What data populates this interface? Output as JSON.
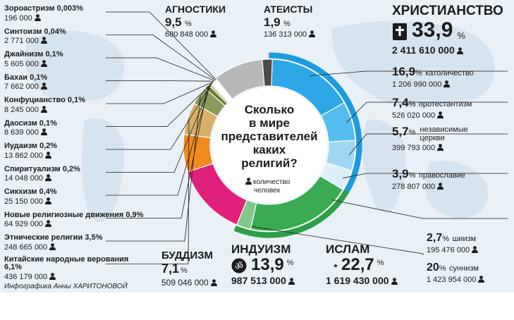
{
  "colors": {
    "christianity": "#1e9be0",
    "catholic": "#2da6e6",
    "protestant": "#55bdee",
    "independent": "#9fd7f3",
    "orthodox": "#dceef8",
    "islam": "#2e9e49",
    "sunni": "#3aab52",
    "shia": "#7fc88a",
    "hinduism": "#e0207a",
    "buddhism": "#f08a1e",
    "chinese": "#d9b06a",
    "ethnic": "#8a9a5b",
    "new_movements": "#6b7b2e",
    "sikh": "#b5a77a",
    "spiritism": "#e06a5a",
    "judaism": "#5a6fb3",
    "small": "#c97b9f",
    "agnostics": "#b7b7b7",
    "atheists": "#4a4a4a",
    "map": "#d6e4ef",
    "title_circle": "#ffffff"
  },
  "center": {
    "title_lines": [
      "Сколько",
      "в мире",
      "представителей",
      "каких",
      "религий?"
    ],
    "legend_text_1": "количество",
    "legend_text_2": "человек",
    "legend_icon": "person-icon"
  },
  "chart_data": {
    "type": "pie",
    "segments": [
      {
        "name": "Христианство",
        "percent": 33.9,
        "count": "2 411 610 000"
      },
      {
        "name": "Ислам",
        "percent": 22.7,
        "count": "1 619 430 000"
      },
      {
        "name": "Индуизм",
        "percent": 13.9,
        "count": "987 513 000"
      },
      {
        "name": "Буддизм",
        "percent": 7.1,
        "count": "509 046 000"
      },
      {
        "name": "Китайские народные верования",
        "percent": 6.1,
        "count": "436 179 000"
      },
      {
        "name": "Этнические религии",
        "percent": 3.5,
        "count": "248 665 000"
      },
      {
        "name": "Новые религиозные движения",
        "percent": 0.9,
        "count": "64 929 000"
      },
      {
        "name": "Сикхизм",
        "percent": 0.4,
        "count": "25 150 000"
      },
      {
        "name": "Спиритуализм",
        "percent": 0.2,
        "count": "14 048 000"
      },
      {
        "name": "Иудаизм",
        "percent": 0.2,
        "count": "13 862 000"
      },
      {
        "name": "Даосизм",
        "percent": 0.1,
        "count": "8 639 000"
      },
      {
        "name": "Конфуцианство",
        "percent": 0.1,
        "count": "8 245 000"
      },
      {
        "name": "Бахаи",
        "percent": 0.1,
        "count": "7 662 000"
      },
      {
        "name": "Джайнизм",
        "percent": 0.1,
        "count": "5 605 000"
      },
      {
        "name": "Синтоизм",
        "percent": 0.04,
        "count": "2 771 000"
      },
      {
        "name": "Зороастризм",
        "percent": 0.003,
        "count": "196 000"
      },
      {
        "name": "Агностики",
        "percent": 9.5,
        "count": "680 848 000"
      },
      {
        "name": "Атеисты",
        "percent": 1.9,
        "count": "136 313 000"
      }
    ],
    "christianity_breakdown": [
      {
        "name": "католичество",
        "percent": 16.9,
        "count": "1 206 990 000"
      },
      {
        "name": "протестантизм",
        "percent": 7.4,
        "count": "526 020 000"
      },
      {
        "name": "независимые церкви",
        "percent": 5.7,
        "count": "399 793 000"
      },
      {
        "name": "православие",
        "percent": 3.9,
        "count": "278 807 000"
      }
    ],
    "islam_breakdown": [
      {
        "name": "суннизм",
        "percent": 20,
        "count": "1 423 954 000"
      },
      {
        "name": "шиизм",
        "percent": 2.7,
        "count": "195 476 000"
      }
    ]
  },
  "labels": {
    "small": [
      {
        "name": "Зороастризм 0,003%",
        "count": "196 000"
      },
      {
        "name": "Синтоизм 0,04%",
        "count": "2 771 000"
      },
      {
        "name": "Джайнизм 0,1%",
        "count": "5 605 000"
      },
      {
        "name": "Бахаи 0,1%",
        "count": "7 662 000"
      },
      {
        "name": "Конфуцианство 0,1%",
        "count": "8 245 000"
      },
      {
        "name": "Даосизм 0,1%",
        "count": "8 639 000"
      },
      {
        "name": "Иудаизм 0,2%",
        "count": "13 862 000"
      },
      {
        "name": "Спиритуализм 0,2%",
        "count": "14 048 000"
      },
      {
        "name": "Сикхизм 0,4%",
        "count": "25 150 000"
      },
      {
        "name": "Новые религиозные движения 0,9%",
        "count": "64 929 000"
      },
      {
        "name": "Этнические религии 3,5%",
        "count": "248 665 000"
      },
      {
        "name": "Китайские народные верования",
        "name2": "6,1%",
        "count": "436 179 000"
      }
    ],
    "agnostics": {
      "name": "АГНОСТИКИ",
      "pct": "9,5",
      "unit": "%",
      "count": "680 848 000"
    },
    "atheists": {
      "name": "АТЕИСТЫ",
      "pct": "1,9",
      "unit": "%",
      "count": "136 313 000"
    },
    "christianity": {
      "name": "ХРИСТИАНСТВО",
      "pct": "33,9",
      "unit": "%",
      "count": "2 411 610 000"
    },
    "catholic": {
      "pct": "16,9",
      "unit": "%",
      "name": "католичество",
      "count": "1 206 990 000"
    },
    "protestant": {
      "pct": "7,4",
      "unit": "%",
      "name": "протестантизм",
      "count": "526 020 000"
    },
    "independent": {
      "pct": "5,7",
      "unit": "%",
      "name1": "независимые",
      "name2": "церкви",
      "count": "399 793 000"
    },
    "orthodox": {
      "pct": "3,9",
      "unit": "%",
      "name": "православие",
      "count": "278 807 000"
    },
    "shia": {
      "pct": "2,7",
      "unit": "%",
      "name": "шиизм",
      "count": "195 476 000"
    },
    "sunni": {
      "pct": "20",
      "unit": "%",
      "name": "суннизм",
      "count": "1 423 954 000"
    },
    "islam": {
      "name": "ИСЛАМ",
      "pct": "22,7",
      "unit": "%",
      "count": "1 619 430 000"
    },
    "hinduism": {
      "name": "ИНДУИЗМ",
      "pct": "13,9",
      "unit": "%",
      "count": "987 513 000"
    },
    "buddhism": {
      "name": "БУДДИЗМ",
      "pct": "7,1",
      "unit": "%",
      "count": "509 046 000"
    },
    "credit": "Инфографика Анны ХАРИТОНОВОЙ"
  }
}
